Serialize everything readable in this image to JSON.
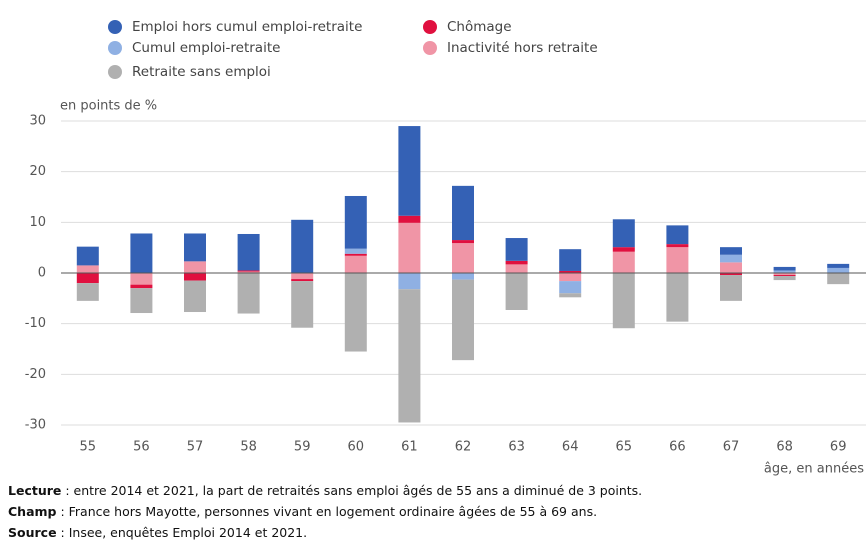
{
  "chart_data": {
    "type": "stacked_bar",
    "y_label": "en points de %",
    "x_label": "âge, en années",
    "categories": [
      "55",
      "56",
      "57",
      "58",
      "59",
      "60",
      "61",
      "62",
      "63",
      "64",
      "65",
      "66",
      "67",
      "68",
      "69"
    ],
    "series": [
      {
        "name": "Emploi hors cumul emploi-retraite",
        "color": "#3461b5",
        "values": [
          3.7,
          7.8,
          5.5,
          7.2,
          10.5,
          10.4,
          17.7,
          10.7,
          4.5,
          4.3,
          5.5,
          3.7,
          1.5,
          0.7,
          0.8
        ]
      },
      {
        "name": "Chômage",
        "color": "#e0103f",
        "values": [
          -2,
          -0.7,
          -1.5,
          0.2,
          -0.4,
          0.4,
          1.4,
          0.6,
          0.7,
          0.4,
          0.9,
          0.6,
          -0.4,
          -0.2,
          0
        ]
      },
      {
        "name": "Cumul emploi-retraite",
        "color": "#8fb0e3",
        "values": [
          0,
          0,
          0,
          0,
          0,
          1,
          -3.2,
          -1.3,
          0,
          -2.4,
          0,
          0,
          1.5,
          0.5,
          1
        ]
      },
      {
        "name": "Inactivité hors retraite",
        "color": "#f095a6",
        "values": [
          1.5,
          -2.3,
          2.3,
          0.3,
          -1.2,
          3.4,
          9.9,
          5.9,
          1.7,
          -1.6,
          4.2,
          5.1,
          2.1,
          -0.4,
          0
        ]
      },
      {
        "name": "Retraite sans emploi",
        "color": "#b0b0b0",
        "values": [
          -3.5,
          -4.9,
          -6.2,
          -8,
          -9.2,
          -15.5,
          -26.3,
          -15.9,
          -7.3,
          -0.8,
          -10.9,
          -9.6,
          -5.1,
          -0.8,
          -2.2
        ]
      }
    ],
    "ylim": [
      -30,
      30
    ],
    "yticks": [
      -30,
      -20,
      -10,
      0,
      10,
      20,
      30
    ],
    "grid": true,
    "notes": [
      {
        "label": "Lecture",
        "text": " : entre 2014 et 2021, la part de retraités sans emploi âgés de 55 ans a diminué de 3 points."
      },
      {
        "label": "Champ",
        "text": " : France hors Mayotte, personnes vivant en logement ordinaire âgées de 55 à 69 ans."
      },
      {
        "label": "Source",
        "text": " : Insee, enquêtes Emploi 2014 et 2021."
      }
    ]
  }
}
